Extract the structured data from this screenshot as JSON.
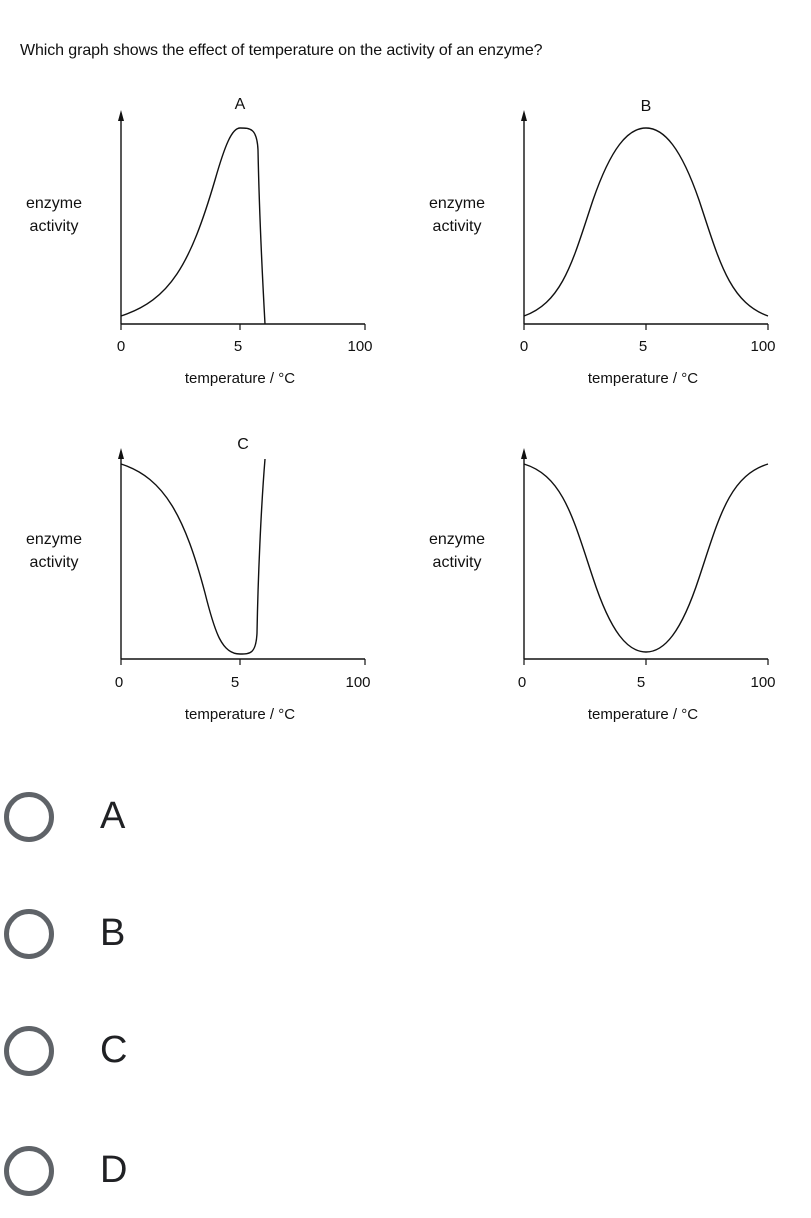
{
  "question": "Which graph shows the effect of temperature on the activity of an enzyme?",
  "graphs": [
    {
      "title": "A",
      "ylabel_line1": "enzyme",
      "ylabel_line2": "activity",
      "ticks": [
        "0",
        "5",
        "100"
      ],
      "xlabel": "temperature / °C"
    },
    {
      "title": "B",
      "ylabel_line1": "enzyme",
      "ylabel_line2": "activity",
      "ticks": [
        "0",
        "5",
        "100"
      ],
      "xlabel": "temperature / °C"
    },
    {
      "title": "C",
      "ylabel_line1": "enzyme",
      "ylabel_line2": "activity",
      "ticks": [
        "0",
        "5",
        "100"
      ],
      "xlabel": "temperature / °C"
    },
    {
      "title": "",
      "ylabel_line1": "enzyme",
      "ylabel_line2": "activity",
      "ticks": [
        "0",
        "5",
        "100"
      ],
      "xlabel": "temperature / °C"
    }
  ],
  "options": [
    {
      "label": "A"
    },
    {
      "label": "B"
    },
    {
      "label": "C"
    },
    {
      "label": "D"
    }
  ],
  "colors": {
    "radio_border": "#5f6368",
    "line": "#111111"
  }
}
